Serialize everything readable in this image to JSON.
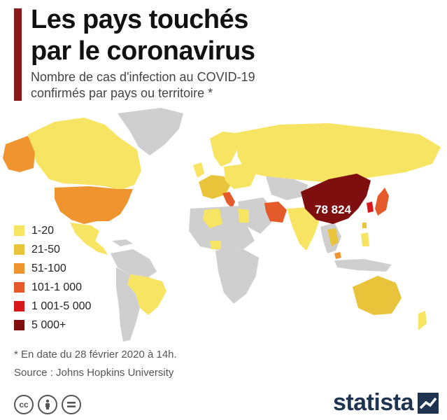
{
  "header": {
    "title_line1": "Les pays touchés",
    "title_line2": "par le coronavirus",
    "subtitle_line1": "Nombre de cas d'infection au COVID-19",
    "subtitle_line2": "confirmés par pays ou territoire *"
  },
  "map": {
    "china_label": "78 824"
  },
  "legend": {
    "items": [
      {
        "label": "1-20",
        "color": "#f7e463"
      },
      {
        "label": "21-50",
        "color": "#e9c43a"
      },
      {
        "label": "51-100",
        "color": "#f0942f"
      },
      {
        "label": "101-1 000",
        "color": "#e55a2b"
      },
      {
        "label": "1 001-5 000",
        "color": "#d7191c"
      },
      {
        "label": "5 000+",
        "color": "#7f0f0f"
      }
    ]
  },
  "colors": {
    "no_data": "#cfcfcf",
    "accent": "#8b1a1a",
    "brand": "#1e3350"
  },
  "footer": {
    "footnote": "* En date du 28 février 2020 à 14h.",
    "source": "Source : Johns Hopkins University",
    "brand": "statista",
    "license_icons": [
      "cc-icon",
      "by-icon",
      "nd-icon"
    ]
  }
}
